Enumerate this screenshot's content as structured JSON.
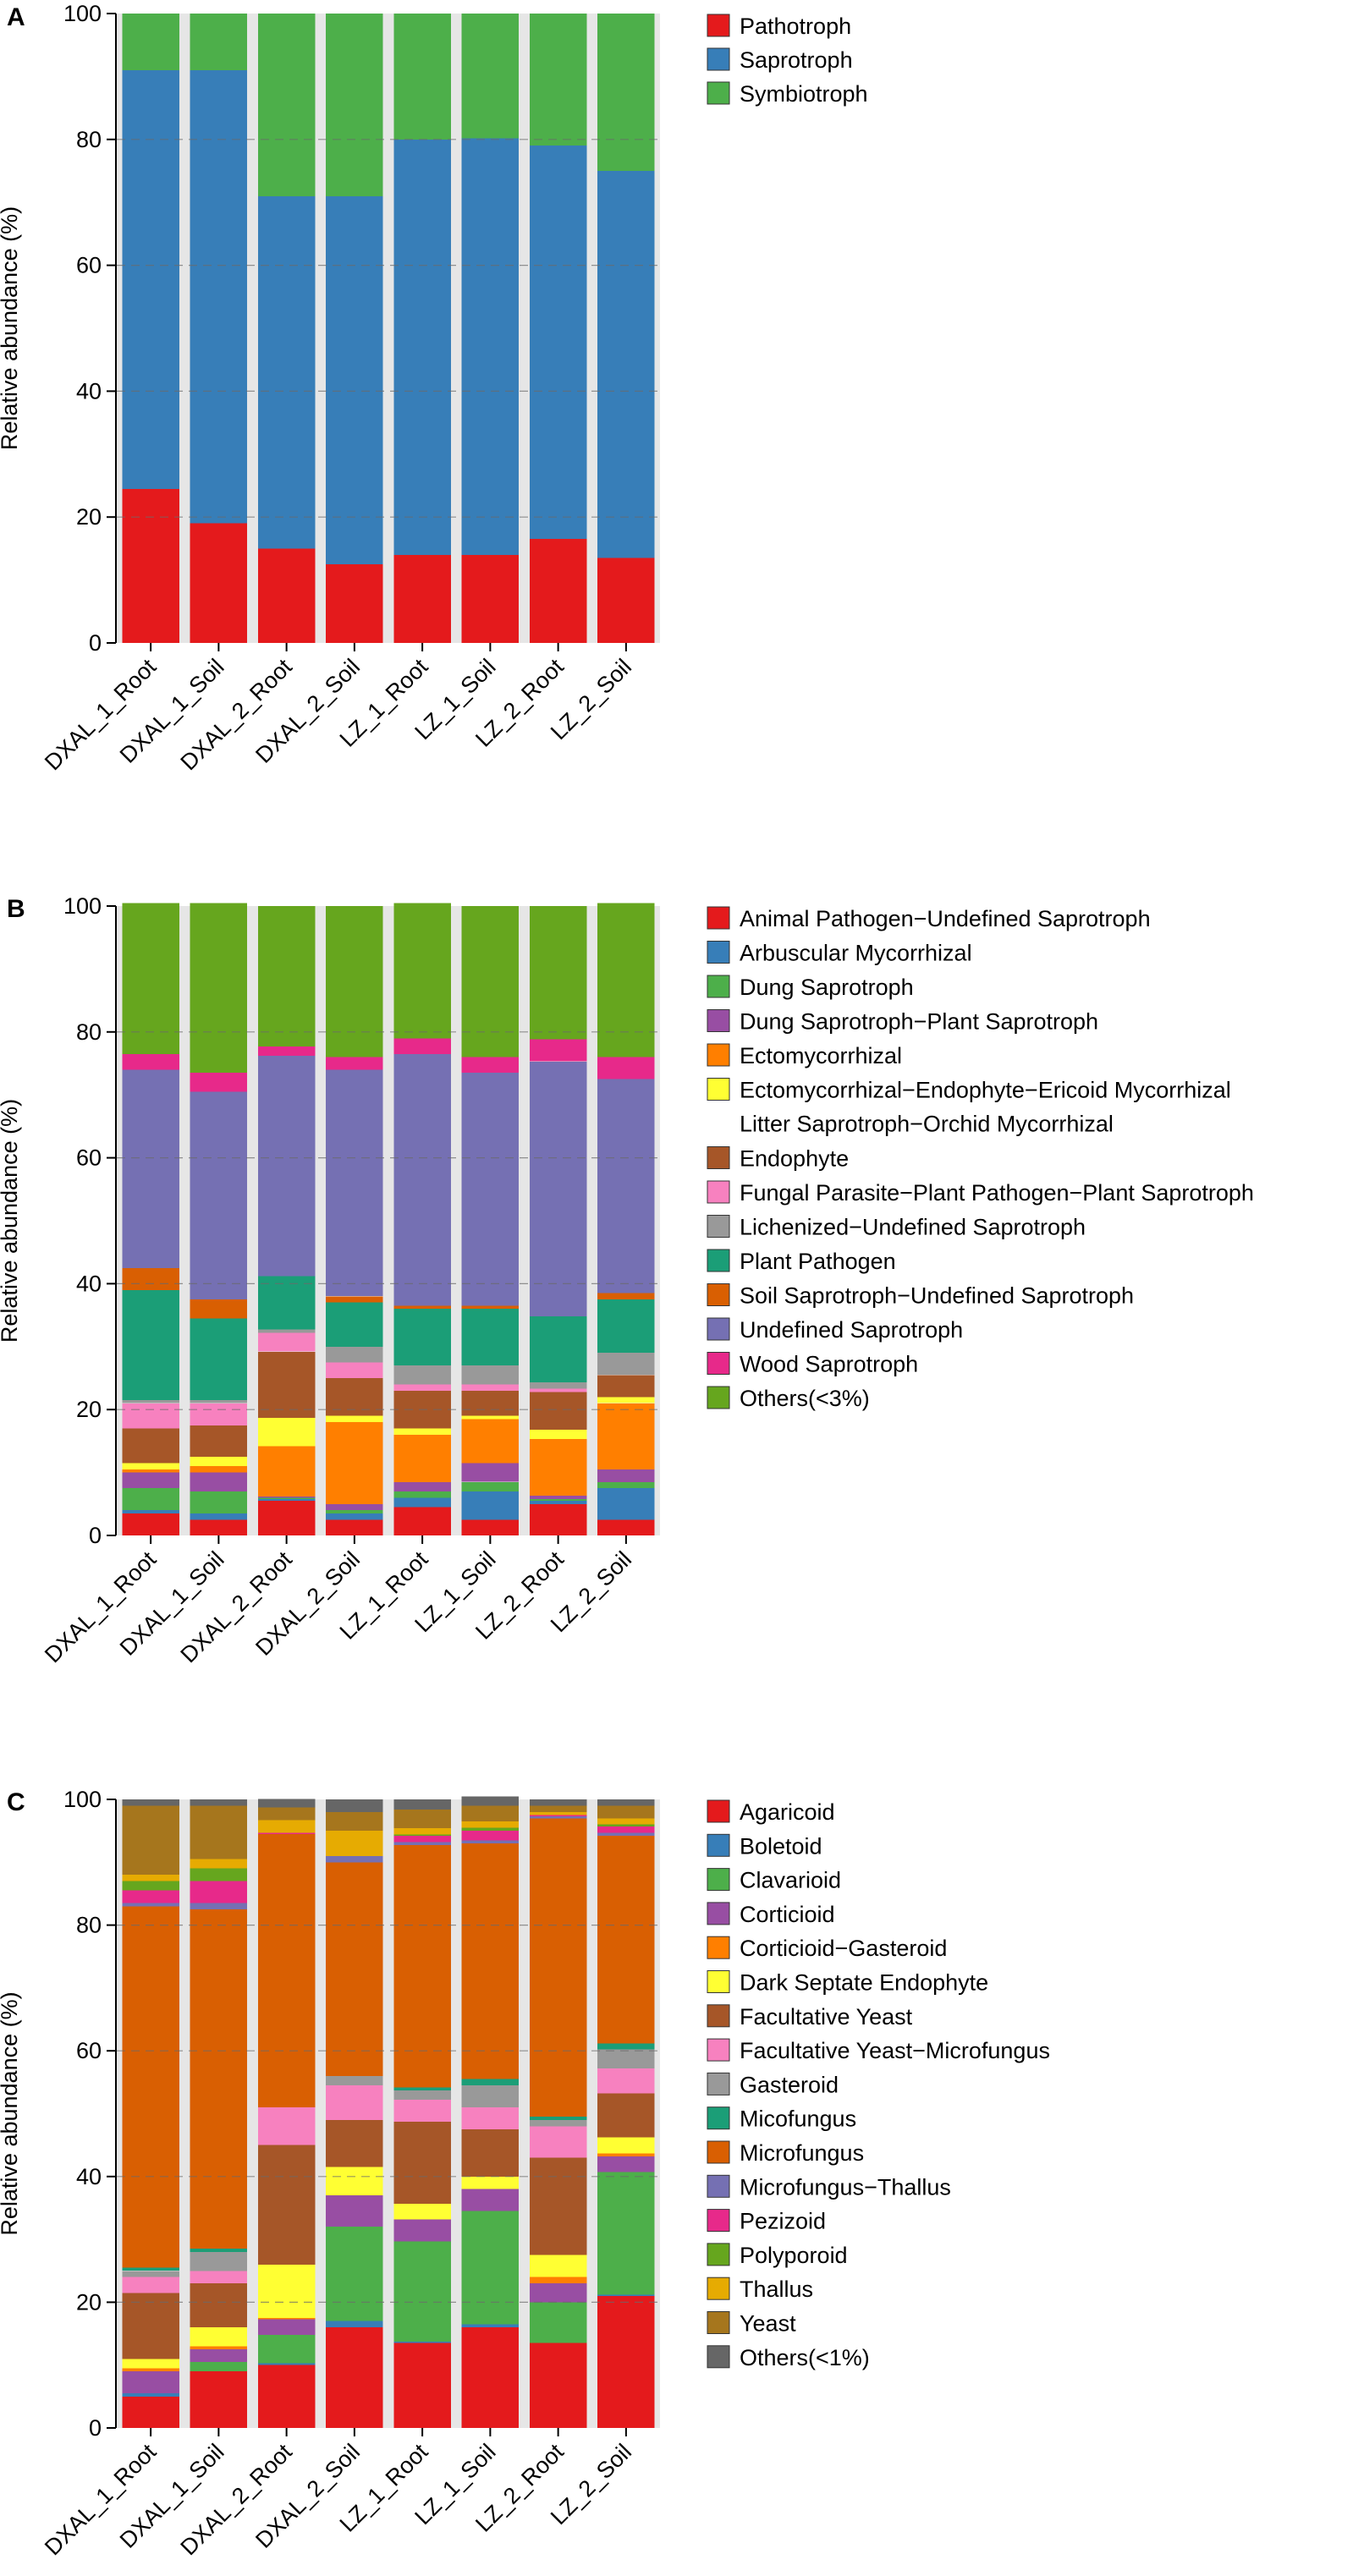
{
  "colors": {
    "red": "#e41a1c",
    "blue": "#377eb8",
    "green": "#4daf4a",
    "purple": "#984ea3",
    "orange": "#ff7f00",
    "yellow": "#ffff33",
    "brown": "#a65628",
    "pink": "#f781bf",
    "gray": "#999999",
    "teal": "#1b9e77",
    "darkorange": "#d95f02",
    "slate": "#7570b3",
    "magenta": "#e7298a",
    "olive": "#66a61e",
    "gold": "#e6ab02",
    "ochre": "#a6761d",
    "dark": "#666666"
  },
  "chart_data": [
    {
      "type": "bar",
      "panel_label": "A",
      "ylabel": "Relative abundance (%)",
      "ylim": [
        0,
        100
      ],
      "yticks": [
        0,
        20,
        40,
        60,
        80,
        100
      ],
      "categories": [
        "DXAL_1_Root",
        "DXAL_1_Soil",
        "DXAL_2_Root",
        "DXAL_2_Soil",
        "LZ_1_Root",
        "LZ_1_Soil",
        "LZ_2_Root",
        "LZ_2_Soil"
      ],
      "series": [
        {
          "name": "Pathotroph",
          "color": "#e41a1c",
          "values": [
            24.5,
            19,
            15,
            12.5,
            14,
            14,
            16.5,
            13.5
          ]
        },
        {
          "name": "Saprotroph",
          "color": "#377eb8",
          "values": [
            66.5,
            72,
            56,
            58.5,
            66,
            66.2,
            62.5,
            61.5
          ]
        },
        {
          "name": "Symbiotroph",
          "color": "#4daf4a",
          "values": [
            9,
            9,
            29,
            29,
            20,
            19.8,
            21,
            25
          ]
        }
      ]
    },
    {
      "type": "bar",
      "panel_label": "B",
      "ylabel": "Relative abundance (%)",
      "ylim": [
        0,
        100
      ],
      "yticks": [
        0,
        20,
        40,
        60,
        80,
        100
      ],
      "categories": [
        "DXAL_1_Root",
        "DXAL_1_Soil",
        "DXAL_2_Root",
        "DXAL_2_Soil",
        "LZ_1_Root",
        "LZ_1_Soil",
        "LZ_2_Root",
        "LZ_2_Soil"
      ],
      "series": [
        {
          "name": "Animal Pathogen−Undefined Saprotroph",
          "color": "#e41a1c",
          "values": [
            3.5,
            2.5,
            5.5,
            2.5,
            4.5,
            2.5,
            5,
            2.5
          ]
        },
        {
          "name": "Arbuscular Mycorrhizal",
          "color": "#377eb8",
          "values": [
            0.5,
            1,
            0.3,
            1,
            1.5,
            4.5,
            0.5,
            5
          ]
        },
        {
          "name": "Dung Saprotroph",
          "color": "#4daf4a",
          "values": [
            3.5,
            3.5,
            0.2,
            0.5,
            1,
            1.5,
            0.3,
            1
          ]
        },
        {
          "name": "Dung Saprotroph−Plant Saprotroph",
          "color": "#984ea3",
          "values": [
            2.5,
            3,
            0.2,
            1,
            1.5,
            3,
            0.5,
            2
          ]
        },
        {
          "name": "Ectomycorrhizal",
          "color": "#ff7f00",
          "values": [
            0.5,
            1,
            8,
            13,
            7.5,
            7,
            9,
            10.5
          ]
        },
        {
          "name": "Ectomycorrhizal−Endophyte−Ericoid Mycorrhizal−Litter Saprotroph−Orchid Mycorrhizal",
          "color": "#ffff33",
          "values": [
            1,
            1.5,
            4.5,
            1,
            1,
            0.5,
            1.5,
            1
          ]
        },
        {
          "name": "Endophyte",
          "color": "#a65628",
          "values": [
            5.5,
            5,
            10.5,
            6,
            6,
            4,
            6,
            3.5
          ]
        },
        {
          "name": "Fungal Parasite−Plant Pathogen−Plant Saprotroph",
          "color": "#f781bf",
          "values": [
            4,
            3.5,
            3,
            2.5,
            1,
            1,
            0.5,
            0
          ]
        },
        {
          "name": "Lichenized−Undefined Saprotroph",
          "color": "#999999",
          "values": [
            0.5,
            0.5,
            0.5,
            2.5,
            3,
            3,
            1,
            3.5
          ]
        },
        {
          "name": "Plant Pathogen",
          "color": "#1b9e77",
          "values": [
            17.5,
            13,
            8.5,
            7,
            9,
            9,
            10.5,
            8.5
          ]
        },
        {
          "name": "Soil Saprotroph−Undefined Saprotroph",
          "color": "#d95f02",
          "values": [
            3.5,
            3,
            0,
            1,
            0.5,
            0.5,
            0,
            1
          ]
        },
        {
          "name": "Undefined Saprotroph",
          "color": "#7570b3",
          "values": [
            31.5,
            33,
            35,
            36,
            40,
            37,
            40.5,
            34
          ]
        },
        {
          "name": "Wood Saprotroph",
          "color": "#e7298a",
          "values": [
            2.5,
            3,
            1.5,
            2,
            2.5,
            2.5,
            3.5,
            3.5
          ]
        },
        {
          "name": "Others(<3%)",
          "color": "#66a61e",
          "values": [
            24,
            27,
            22.3,
            24,
            21.5,
            24,
            21.2,
            24.5
          ]
        }
      ]
    },
    {
      "type": "bar",
      "panel_label": "C",
      "ylabel": "Relative abundance (%)",
      "ylim": [
        0,
        100
      ],
      "yticks": [
        0,
        20,
        40,
        60,
        80,
        100
      ],
      "categories": [
        "DXAL_1_Root",
        "DXAL_1_Soil",
        "DXAL_2_Root",
        "DXAL_2_Soil",
        "LZ_1_Root",
        "LZ_1_Soil",
        "LZ_2_Root",
        "LZ_2_Soil"
      ],
      "series": [
        {
          "name": "Agaricoid",
          "color": "#e41a1c",
          "values": [
            5,
            9,
            10,
            16,
            13.5,
            16,
            13.5,
            21
          ]
        },
        {
          "name": "Boletoid",
          "color": "#377eb8",
          "values": [
            0.5,
            0,
            0.3,
            1,
            0.2,
            0.5,
            0,
            0.2
          ]
        },
        {
          "name": "Clavarioid",
          "color": "#4daf4a",
          "values": [
            0,
            1.5,
            4.5,
            15,
            16,
            18,
            6.5,
            19.5
          ]
        },
        {
          "name": "Corticioid",
          "color": "#984ea3",
          "values": [
            3.5,
            2,
            2.5,
            5,
            3.5,
            3.5,
            3,
            2.5
          ]
        },
        {
          "name": "Corticioid−Gasteroid",
          "color": "#ff7f00",
          "values": [
            0.5,
            0.5,
            0.2,
            0,
            0,
            0,
            1,
            0.5
          ]
        },
        {
          "name": "Dark Septate Endophyte",
          "color": "#ffff33",
          "values": [
            1.5,
            3,
            8.5,
            4.5,
            2.5,
            2,
            3.5,
            2.5
          ]
        },
        {
          "name": "Facultative Yeast",
          "color": "#a65628",
          "values": [
            10.5,
            7,
            19,
            7.5,
            13,
            7.5,
            15.5,
            7
          ]
        },
        {
          "name": "Facultative Yeast−Microfungus",
          "color": "#f781bf",
          "values": [
            2.5,
            2,
            6,
            5.5,
            3.5,
            3.5,
            5,
            4
          ]
        },
        {
          "name": "Gasteroid",
          "color": "#999999",
          "values": [
            1,
            3,
            0,
            1.5,
            1.5,
            3.5,
            1,
            3
          ]
        },
        {
          "name": "Micofungus",
          "color": "#1b9e77",
          "values": [
            0.5,
            0.5,
            0,
            0,
            0.5,
            1,
            0.5,
            1
          ]
        },
        {
          "name": "Microfungus",
          "color": "#d95f02",
          "values": [
            57.5,
            54,
            43.5,
            34,
            38.5,
            37.5,
            47.5,
            33
          ]
        },
        {
          "name": "Microfungus−Thallus",
          "color": "#7570b3",
          "values": [
            0.5,
            1,
            0,
            1,
            0.5,
            0.5,
            0.3,
            0.5
          ]
        },
        {
          "name": "Pezizoid",
          "color": "#e7298a",
          "values": [
            2,
            3.5,
            0.2,
            0,
            1,
            1.5,
            0.2,
            1
          ]
        },
        {
          "name": "Polyporoid",
          "color": "#66a61e",
          "values": [
            1.5,
            2,
            0,
            0,
            0.2,
            0.5,
            0,
            0.3
          ]
        },
        {
          "name": "Thallus",
          "color": "#e6ab02",
          "values": [
            1,
            1.5,
            2,
            4,
            1,
            1,
            0.5,
            1
          ]
        },
        {
          "name": "Yeast",
          "color": "#a6761d",
          "values": [
            11,
            8.5,
            2,
            3,
            3,
            2.5,
            1,
            2
          ]
        },
        {
          "name": "Others(<1%)",
          "color": "#666666",
          "values": [
            1,
            1,
            1.4,
            2,
            1.6,
            1.5,
            1,
            1
          ]
        }
      ]
    }
  ]
}
